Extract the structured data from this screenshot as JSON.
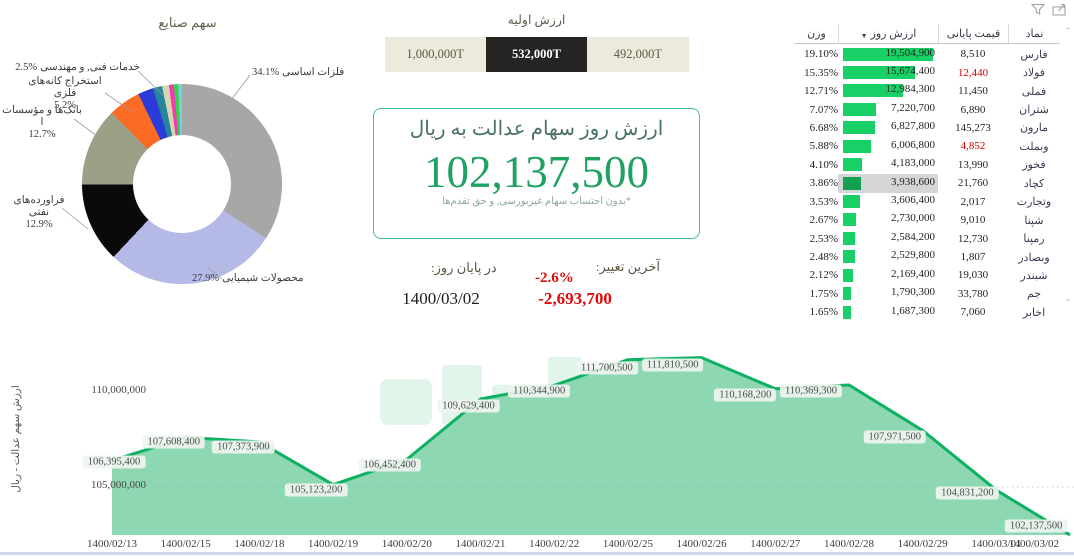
{
  "donut_labels": {
    "metals": {
      "pct": "34.1%",
      "name": "فلزات اساسی"
    },
    "chemicals": {
      "pct": "27.9%",
      "name": "محصولات شیمیایی"
    },
    "oil": {
      "pct": "12.9%",
      "name": "فراورده‌های نفتی"
    },
    "banks": {
      "pct": "12.7%",
      "name": "بانک‌ها و مؤسسات ا"
    },
    "mining": {
      "pct": "5.2%",
      "name": "استخراج کانه‌های فلزی"
    },
    "services": {
      "pct": "2.5%",
      "name": "خدمات فنی, و مهندسی"
    }
  },
  "initial_value": {
    "title": "ارزش اولیه",
    "options": [
      {
        "label": "1,000,000T",
        "selected": false
      },
      {
        "label": "532,000T",
        "selected": true
      },
      {
        "label": "492,000T",
        "selected": false
      }
    ]
  },
  "day_value": {
    "title": "ارزش روز سهام عدالت به ریال",
    "amount": "102,137,500",
    "note": "*بدون احتساب سهام غیربورسی, و حق تقدم‌ها"
  },
  "change": {
    "last_change_label": "آخرین تغییر:",
    "pct": "-2.6%",
    "amount": "-2,693,700",
    "day_end_label": "در پایان روز:",
    "date": "1400/03/02"
  },
  "table": {
    "headers": {
      "weight": "وزن",
      "day_value": "ارزش روز",
      "close": "قیمت پایانی",
      "symbol": "نماد"
    },
    "sort_icon": "▼",
    "scroll_up_icon": "⌃",
    "scroll_down_icon": "⌄",
    "max_value": 19504900,
    "rows": [
      {
        "symbol": "فارس",
        "close": "8,510",
        "close_red": false,
        "value": "19,504,900",
        "value_num": 19504900,
        "weight": "19.10%",
        "highlighted": false
      },
      {
        "symbol": "فولاد",
        "close": "12,440",
        "close_red": true,
        "value": "15,674,400",
        "value_num": 15674400,
        "weight": "15.35%",
        "highlighted": false
      },
      {
        "symbol": "فملی",
        "close": "11,450",
        "close_red": false,
        "value": "12,984,300",
        "value_num": 12984300,
        "weight": "12.71%",
        "highlighted": false
      },
      {
        "symbol": "شتران",
        "close": "6,890",
        "close_red": false,
        "value": "7,220,700",
        "value_num": 7220700,
        "weight": "7.07%",
        "highlighted": false
      },
      {
        "symbol": "مارون",
        "close": "145,273",
        "close_red": false,
        "value": "6,827,800",
        "value_num": 6827800,
        "weight": "6.68%",
        "highlighted": false
      },
      {
        "symbol": "وبملت",
        "close": "4,852",
        "close_red": true,
        "value": "6,006,800",
        "value_num": 6006800,
        "weight": "5.88%",
        "highlighted": false
      },
      {
        "symbol": "فخوز",
        "close": "13,990",
        "close_red": false,
        "value": "4,183,000",
        "value_num": 4183000,
        "weight": "4.10%",
        "highlighted": false
      },
      {
        "symbol": "کچاد",
        "close": "21,760",
        "close_red": false,
        "value": "3,938,600",
        "value_num": 3938600,
        "weight": "3.86%",
        "highlighted": true
      },
      {
        "symbol": "وتجارت",
        "close": "2,017",
        "close_red": false,
        "value": "3,606,400",
        "value_num": 3606400,
        "weight": "3.53%",
        "highlighted": false
      },
      {
        "symbol": "شپنا",
        "close": "9,010",
        "close_red": false,
        "value": "2,730,000",
        "value_num": 2730000,
        "weight": "2.67%",
        "highlighted": false
      },
      {
        "symbol": "رمپنا",
        "close": "12,730",
        "close_red": false,
        "value": "2,584,200",
        "value_num": 2584200,
        "weight": "2.53%",
        "highlighted": false
      },
      {
        "symbol": "وبصادر",
        "close": "1,807",
        "close_red": false,
        "value": "2,529,800",
        "value_num": 2529800,
        "weight": "2.48%",
        "highlighted": false
      },
      {
        "symbol": "شبندر",
        "close": "19,030",
        "close_red": false,
        "value": "2,169,400",
        "value_num": 2169400,
        "weight": "2.12%",
        "highlighted": false
      },
      {
        "symbol": "جم",
        "close": "33,780",
        "close_red": false,
        "value": "1,790,300",
        "value_num": 1790300,
        "weight": "1.75%",
        "highlighted": false
      },
      {
        "symbol": "اخابر",
        "close": "7,060",
        "close_red": false,
        "value": "1,687,300",
        "value_num": 1687300,
        "weight": "1.65%",
        "highlighted": false
      }
    ]
  },
  "chart_data": [
    {
      "type": "pie",
      "title": "سهم صنایع",
      "labels": [
        "فلزات اساسی",
        "محصولات شیمیایی",
        "فراورده‌های نفتی",
        "بانک‌ها و مؤسسات ا",
        "استخراج کانه‌های فلزی",
        "خدمات فنی, و مهندسی",
        "",
        "",
        "",
        "",
        ""
      ],
      "values": [
        34.1,
        27.9,
        12.9,
        12.7,
        5.2,
        2.5,
        1.5,
        1.1,
        0.8,
        0.7,
        0.6
      ],
      "colors": [
        "#a7a7a7",
        "#b5b9e6",
        "#0a0a0a",
        "#9ba186",
        "#fb6b23",
        "#2b3bd8",
        "#27859b",
        "#d8d6b0",
        "#f13ab4",
        "#35d24a",
        "#79cfe0"
      ]
    },
    {
      "type": "area",
      "title": "",
      "xlabel": "",
      "ylabel": "ارزش سهم عدالت - ریال",
      "x": [
        "1400/02/13",
        "1400/02/15",
        "1400/02/18",
        "1400/02/19",
        "1400/02/20",
        "1400/02/21",
        "1400/02/22",
        "1400/02/25",
        "1400/02/26",
        "1400/02/27",
        "1400/02/28",
        "1400/02/29",
        "1400/03/01",
        "1400/03/02"
      ],
      "values": [
        106395400,
        107608400,
        107373900,
        105123200,
        106452400,
        109629400,
        110344900,
        111700500,
        111810500,
        110168200,
        110369300,
        107971500,
        104831200,
        102137500
      ],
      "ylim": [
        102000000,
        112000000
      ],
      "yticks": [
        "110,000,000",
        "105,000,000"
      ],
      "grid": "dotted line at 105,000,000",
      "line_color": "#0cb161",
      "fill_color": "#8ed7b3"
    }
  ]
}
